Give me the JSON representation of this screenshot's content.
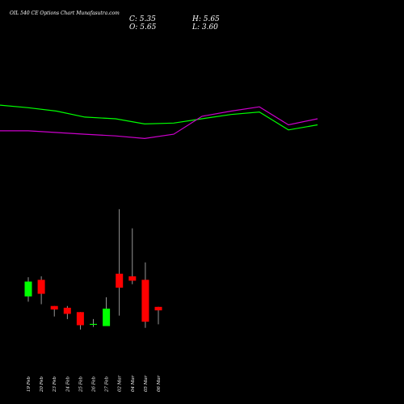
{
  "chart_data": {
    "type": "candlestick",
    "title": "OIL 540 CE Options Chart Munafasutra.com",
    "ohlc_readout": {
      "close_label": "C: 5.35",
      "high_label": "H: 5.65",
      "open_label": "O: 5.65",
      "low_label": "L: 3.60"
    },
    "categories": [
      "19 Feb",
      "20 Feb",
      "23 Feb",
      "24 Feb",
      "25 Feb",
      "26 Feb",
      "27 Feb",
      "02 Mar",
      "04 Mar",
      "05 Mar",
      "06 Mar"
    ],
    "candles": [
      {
        "open": 5.2,
        "high": 7.4,
        "low": 4.6,
        "close": 6.9
      },
      {
        "open": 7.1,
        "high": 7.5,
        "low": 4.3,
        "close": 5.5
      },
      {
        "open": 4.1,
        "high": 4.1,
        "low": 2.9,
        "close": 3.7
      },
      {
        "open": 3.9,
        "high": 4.1,
        "low": 2.6,
        "close": 3.2
      },
      {
        "open": 3.4,
        "high": 3.4,
        "low": 1.4,
        "close": 1.9
      },
      {
        "open": 2.0,
        "high": 2.6,
        "low": 1.7,
        "close": 2.05
      },
      {
        "open": 1.8,
        "high": 5.1,
        "low": 1.8,
        "close": 3.8
      },
      {
        "open": 7.8,
        "high": 15.2,
        "low": 3.0,
        "close": 6.2
      },
      {
        "open": 7.5,
        "high": 13.0,
        "low": 6.6,
        "close": 7.0
      },
      {
        "open": 7.1,
        "high": 9.1,
        "low": 1.6,
        "close": 2.3
      },
      {
        "open": 4.0,
        "high": 4.0,
        "low": 2.0,
        "close": 3.6
      }
    ],
    "upper_band": [
      132,
      129,
      125,
      118,
      116,
      110,
      111,
      116,
      121,
      124,
      103,
      109
    ],
    "lower_band": [
      102,
      102,
      100,
      98,
      96,
      93,
      98,
      119,
      125,
      130,
      109,
      116
    ],
    "colors": {
      "background": "#000000",
      "up_candle": "#00ff00",
      "down_candle": "#ff0000",
      "wick": "#bbbbbb",
      "upper_band": "#00ff00",
      "lower_band": "#cc00cc",
      "text": "#ffffff"
    }
  }
}
